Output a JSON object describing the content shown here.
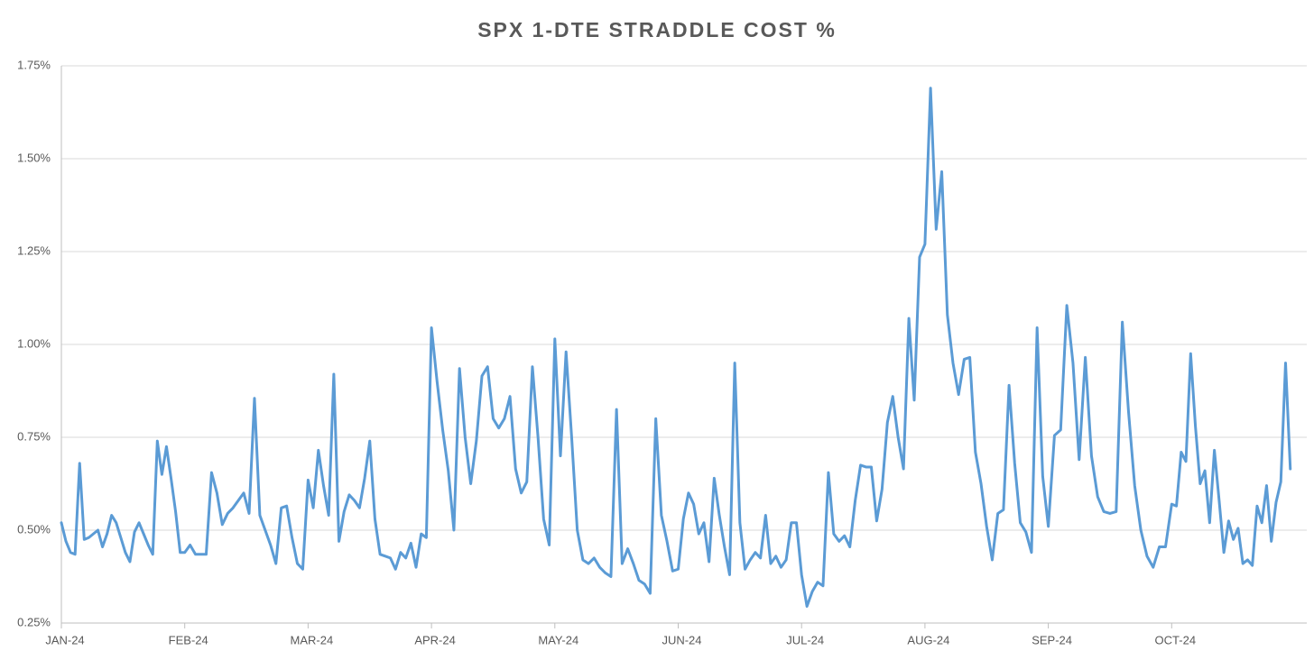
{
  "chart_data": {
    "type": "line",
    "title": "SPX 1-DTE STRADDLE COST %",
    "categories": [
      "JAN-24",
      null,
      null,
      null,
      null,
      null,
      null,
      null,
      null,
      null,
      null,
      null,
      null,
      null,
      null,
      null,
      null,
      null,
      null,
      null,
      null,
      null,
      null,
      null,
      null,
      null,
      null,
      "FEB-24",
      null,
      null,
      null,
      null,
      null,
      null,
      null,
      null,
      null,
      null,
      null,
      null,
      null,
      null,
      null,
      null,
      null,
      null,
      null,
      null,
      null,
      null,
      "MAR-24",
      null,
      null,
      null,
      null,
      null,
      null,
      null,
      null,
      null,
      null,
      null,
      null,
      null,
      null,
      null,
      null,
      null,
      null,
      null,
      null,
      null,
      null,
      null,
      "APR-24",
      null,
      null,
      null,
      null,
      null,
      null,
      null,
      null,
      null,
      null,
      null,
      null,
      null,
      null,
      null,
      null,
      null,
      null,
      null,
      null,
      null,
      "MAY-24",
      null,
      null,
      null,
      null,
      null,
      null,
      null,
      null,
      null,
      null,
      null,
      null,
      null,
      null,
      null,
      null,
      null,
      null,
      null,
      null,
      null,
      "JUN-24",
      null,
      null,
      null,
      null,
      null,
      null,
      null,
      null,
      null,
      null,
      null,
      null,
      null,
      null,
      null,
      null,
      null,
      null,
      null,
      null,
      null,
      null,
      null,
      "JUL-24",
      null,
      null,
      null,
      null,
      null,
      null,
      null,
      null,
      null,
      null,
      null,
      null,
      null,
      null,
      null,
      null,
      null,
      null,
      null,
      null,
      null,
      null,
      "AUG-24",
      null,
      null,
      null,
      null,
      null,
      null,
      null,
      null,
      null,
      null,
      null,
      null,
      null,
      null,
      null,
      null,
      null,
      null,
      null,
      null,
      null,
      "SEP-24",
      null,
      null,
      null,
      null,
      null,
      null,
      null,
      null,
      null,
      null,
      null,
      null,
      null,
      null,
      null,
      null,
      null,
      null,
      null,
      "OCT-24",
      null,
      null,
      null,
      null,
      null,
      null,
      null,
      null,
      null,
      null,
      null,
      null,
      null,
      null,
      null,
      null,
      null,
      null,
      null,
      null,
      null,
      null,
      null,
      null,
      null
    ],
    "series": [
      {
        "name": "SPX 1-DTE STRADDLE COST %",
        "color": "#5b9bd5",
        "values": [
          0.52,
          0.47,
          0.44,
          0.435,
          0.68,
          0.475,
          0.48,
          0.49,
          0.5,
          0.455,
          0.49,
          0.54,
          0.52,
          0.48,
          0.44,
          0.415,
          0.495,
          0.52,
          0.49,
          0.46,
          0.435,
          0.74,
          0.65,
          0.725,
          0.64,
          0.55,
          0.44,
          0.44,
          0.46,
          0.435,
          0.435,
          0.435,
          0.655,
          0.6,
          0.515,
          0.545,
          0.56,
          0.58,
          0.6,
          0.545,
          0.855,
          0.54,
          0.5,
          0.46,
          0.41,
          0.56,
          0.565,
          0.48,
          0.41,
          0.395,
          0.635,
          0.56,
          0.715,
          0.62,
          0.54,
          0.92,
          0.47,
          0.55,
          0.595,
          0.58,
          0.56,
          0.64,
          0.74,
          0.53,
          0.435,
          0.43,
          0.425,
          0.395,
          0.44,
          0.425,
          0.465,
          0.4,
          0.49,
          0.48,
          1.045,
          0.9,
          0.77,
          0.66,
          0.5,
          0.935,
          0.75,
          0.625,
          0.74,
          0.915,
          0.94,
          0.8,
          0.775,
          0.8,
          0.86,
          0.665,
          0.6,
          0.63,
          0.94,
          0.75,
          0.53,
          0.46,
          1.015,
          0.7,
          0.98,
          0.75,
          0.5,
          0.42,
          0.41,
          0.425,
          0.4,
          0.385,
          0.375,
          0.825,
          0.41,
          0.45,
          0.41,
          0.365,
          0.355,
          0.33,
          0.8,
          0.54,
          0.47,
          0.39,
          0.395,
          0.53,
          0.6,
          0.57,
          0.49,
          0.52,
          0.415,
          0.64,
          0.54,
          0.455,
          0.38,
          0.95,
          0.52,
          0.395,
          0.42,
          0.44,
          0.425,
          0.54,
          0.41,
          0.43,
          0.4,
          0.42,
          0.52,
          0.52,
          0.38,
          0.295,
          0.335,
          0.36,
          0.35,
          0.655,
          0.49,
          0.47,
          0.485,
          0.455,
          0.58,
          0.675,
          0.67,
          0.67,
          0.525,
          0.61,
          0.79,
          0.86,
          0.75,
          0.665,
          1.07,
          0.85,
          1.235,
          1.27,
          1.69,
          1.31,
          1.465,
          1.08,
          0.95,
          0.865,
          0.96,
          0.965,
          0.71,
          0.625,
          0.51,
          0.42,
          0.545,
          0.555,
          0.89,
          0.68,
          0.52,
          0.495,
          0.44,
          1.045,
          0.645,
          0.51,
          0.755,
          0.77,
          1.105,
          0.95,
          0.69,
          0.965,
          0.7,
          0.59,
          0.55,
          0.545,
          0.55,
          1.06,
          0.82,
          0.62,
          0.5,
          0.43,
          0.4,
          0.455,
          0.455,
          0.57,
          0.565,
          0.71,
          0.685,
          0.975,
          0.78,
          0.625,
          0.66,
          0.52,
          0.715,
          0.58,
          0.44,
          0.525,
          0.475,
          0.505,
          0.41,
          0.42,
          0.405,
          0.565,
          0.52,
          0.62,
          0.47,
          0.575,
          0.63,
          0.95,
          0.665
        ]
      }
    ],
    "ylim": [
      0.25,
      1.75
    ],
    "yticks": [
      {
        "value": 0.25,
        "label": "0.25%"
      },
      {
        "value": 0.5,
        "label": "0.50%"
      },
      {
        "value": 0.75,
        "label": "0.75%"
      },
      {
        "value": 1.0,
        "label": "1.00%"
      },
      {
        "value": 1.25,
        "label": "1.25%"
      },
      {
        "value": 1.5,
        "label": "1.50%"
      },
      {
        "value": 1.75,
        "label": "1.75%"
      }
    ],
    "grid": true
  }
}
